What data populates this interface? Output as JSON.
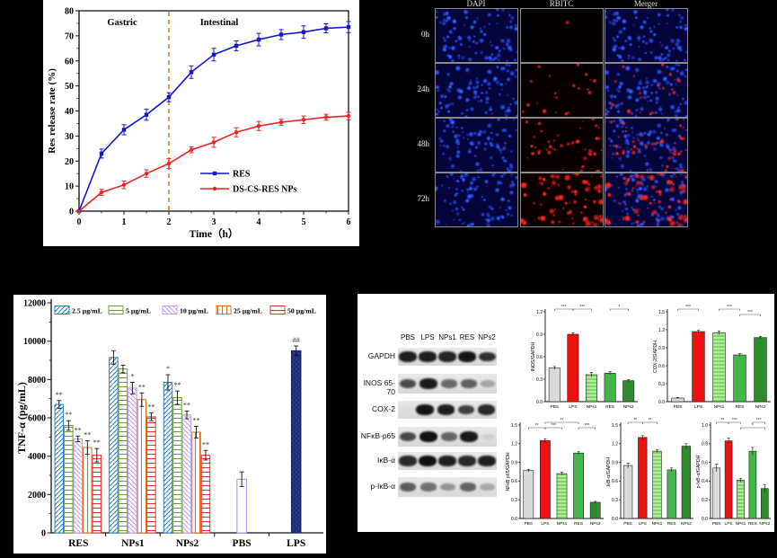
{
  "chart_data": [
    {
      "type": "line",
      "title": "",
      "xlabel": "Time（h）",
      "ylabel": "Res release rate (%)",
      "xlim": [
        0,
        6
      ],
      "ylim": [
        0,
        80
      ],
      "xticks": [
        0,
        1,
        2,
        3,
        4,
        5,
        6
      ],
      "yticks": [
        0,
        10,
        20,
        30,
        40,
        50,
        60,
        70,
        80
      ],
      "grid": false,
      "region_labels": {
        "left": "Gastric",
        "right": "Intestinal"
      },
      "divider_x": 2,
      "divider_color": "#e0821e",
      "legend_position": "lower right",
      "x": [
        0,
        0.5,
        1,
        1.5,
        2,
        2.5,
        3,
        3.5,
        4,
        4.5,
        5,
        5.5,
        6
      ],
      "series": [
        {
          "name": "RES",
          "color": "#1414cc",
          "marker": "square",
          "values": [
            0,
            23,
            32.5,
            38.5,
            45.5,
            55.5,
            62.5,
            66,
            68.5,
            70.5,
            71.5,
            73,
            73.5
          ],
          "errors": [
            0,
            1.8,
            2,
            2.2,
            1.8,
            2.5,
            2.5,
            2,
            2.5,
            2,
            2.5,
            1.8,
            2.2
          ]
        },
        {
          "name": "DS-CS-RES NPs",
          "color": "#ee2222",
          "marker": "circle",
          "values": [
            0,
            7.5,
            10.5,
            15,
            19,
            24.5,
            27.5,
            31.5,
            34,
            35.5,
            36.5,
            37.5,
            38
          ],
          "errors": [
            0,
            1.2,
            1.5,
            1.5,
            2,
            1.2,
            2,
            1.8,
            1.8,
            1.2,
            1.5,
            1.2,
            1.5
          ]
        }
      ]
    },
    {
      "type": "bar",
      "title": "",
      "xlabel": "",
      "ylabel": "TNF-α (pg/mL)",
      "ylim": [
        0,
        12000
      ],
      "yticks": [
        0,
        2000,
        4000,
        6000,
        8000,
        10000,
        12000
      ],
      "legend_position": "top inside",
      "legend": [
        {
          "label": "2.5 µg/mL",
          "color": "#2a7fc1",
          "hatch": "diag-up"
        },
        {
          "label": "5 µg/mL",
          "color": "#6f9c3a",
          "hatch": "horiz"
        },
        {
          "label": "10 µg/mL",
          "color": "#c09af0",
          "hatch": "diag-down"
        },
        {
          "label": "25 µg/mL",
          "color": "#d2701e",
          "hatch": "vert"
        },
        {
          "label": "50 µg/mL",
          "color": "#e03030",
          "hatch": "horiz"
        }
      ],
      "groups": [
        {
          "label": "RES",
          "values": [
            6700,
            5600,
            4900,
            4450,
            4050
          ],
          "errors": [
            200,
            250,
            150,
            350,
            350
          ],
          "sig": [
            "**",
            "**",
            "**",
            "**",
            "**"
          ]
        },
        {
          "label": "NPs1",
          "values": [
            9150,
            8550,
            7550,
            6950,
            6050
          ],
          "errors": [
            350,
            200,
            300,
            350,
            200
          ],
          "sig": [
            "",
            "",
            "*",
            "**",
            "**"
          ]
        },
        {
          "label": "NPs2",
          "values": [
            7850,
            7050,
            6150,
            5250,
            4050
          ],
          "errors": [
            400,
            350,
            200,
            300,
            250
          ],
          "sig": [
            "*",
            "**",
            "**",
            "**",
            "**"
          ]
        },
        {
          "label": "PBS",
          "values": [
            2800
          ],
          "errors": [
            380
          ],
          "sig": [
            ""
          ],
          "style": "pbs",
          "bar_color": "#b488ea"
        },
        {
          "label": "LPS",
          "values": [
            9500
          ],
          "errors": [
            250
          ],
          "sig": [
            "##"
          ],
          "style": "lps",
          "bar_color": "#2b3a8f"
        }
      ]
    },
    {
      "type": "bar",
      "ylabel": "INOS/GAPDH",
      "ylim": [
        0,
        1.2
      ],
      "ytick_step": 0.3,
      "categories": [
        "PBS",
        "LPS",
        "NPs1",
        "RES",
        "NPs2"
      ],
      "values": [
        0.45,
        0.9,
        0.36,
        0.38,
        0.28
      ],
      "errors": [
        0.02,
        0.02,
        0.03,
        0.02,
        0.015
      ],
      "brackets": [
        {
          "from": 0,
          "to": 1,
          "label": "***",
          "row": 0
        },
        {
          "from": 1,
          "to": 2,
          "label": "***",
          "row": 0
        },
        {
          "from": 3,
          "to": 4,
          "label": "*",
          "row": 0
        }
      ]
    },
    {
      "type": "bar",
      "ylabel": "COX-2/GAPDH",
      "ylim": [
        0,
        1.5
      ],
      "ytick_step": 0.3,
      "categories": [
        "PBS",
        "LPS",
        "NPs1",
        "RES",
        "NPs2"
      ],
      "values": [
        0.06,
        1.17,
        1.15,
        0.78,
        1.07
      ],
      "errors": [
        0.01,
        0.02,
        0.03,
        0.02,
        0.02
      ],
      "brackets": [
        {
          "from": 0,
          "to": 1,
          "label": "***",
          "row": 0
        },
        {
          "from": 2,
          "to": 3,
          "label": "***",
          "row": 0
        },
        {
          "from": 3,
          "to": 4,
          "label": "***",
          "row": 1
        }
      ]
    },
    {
      "type": "bar",
      "ylabel": "NFκB p65/GAPDH",
      "ylim": [
        0,
        1.5
      ],
      "ytick_step": 0.3,
      "categories": [
        "PBS",
        "LPS",
        "NPs1",
        "RES",
        "NPs2"
      ],
      "values": [
        0.77,
        1.25,
        0.72,
        1.05,
        0.26
      ],
      "errors": [
        0.02,
        0.03,
        0.02,
        0.02,
        0.015
      ],
      "brackets": [
        {
          "from": 1,
          "to": 3,
          "label": "**",
          "row": 0
        },
        {
          "from": 0,
          "to": 1,
          "label": "**",
          "row": 1
        },
        {
          "from": 1,
          "to": 2,
          "label": "***",
          "row": 1
        },
        {
          "from": 3,
          "to": 4,
          "label": "***",
          "row": 1
        }
      ]
    },
    {
      "type": "bar",
      "ylabel": "IκB-α/GAPDH",
      "ylim": [
        0,
        1.5
      ],
      "ytick_step": 0.3,
      "categories": [
        "PBS",
        "LPS",
        "NPs1",
        "RES",
        "NPs2"
      ],
      "values": [
        0.85,
        1.3,
        1.08,
        0.78,
        1.16
      ],
      "errors": [
        0.04,
        0.03,
        0.02,
        0.03,
        0.04
      ],
      "brackets": [
        {
          "from": 0,
          "to": 1,
          "label": "**",
          "row": 0
        },
        {
          "from": 1,
          "to": 2,
          "label": "**",
          "row": 0
        }
      ]
    },
    {
      "type": "bar",
      "ylabel": "p-IκB-α/GAPDH",
      "ylim": [
        0,
        1.0
      ],
      "ytick_step": 0.2,
      "categories": [
        "PBS",
        "LPS",
        "NPs1",
        "RES",
        "NPs2"
      ],
      "values": [
        0.54,
        0.83,
        0.41,
        0.72,
        0.32
      ],
      "errors": [
        0.04,
        0.03,
        0.02,
        0.04,
        0.04
      ],
      "brackets": [
        {
          "from": 0,
          "to": 1,
          "label": "**",
          "row": 0
        },
        {
          "from": 1,
          "to": 2,
          "label": "***",
          "row": 0
        },
        {
          "from": 2,
          "to": 4,
          "label": "*",
          "row": 1
        },
        {
          "from": 3,
          "to": 4,
          "label": "***",
          "row": 0
        }
      ]
    }
  ],
  "mini_style": {
    "bar_colors": [
      "#d9d9d9",
      "#ee1111",
      "#7bd65f",
      "#43b649",
      "#2e8b2e"
    ],
    "hatched_index": 2
  },
  "fluorescence": {
    "columns": [
      "DAPI",
      "RBITC",
      "Merger"
    ],
    "rows": [
      "0h",
      "24h",
      "48h",
      "72h"
    ],
    "cells": [
      {
        "row": "0h",
        "col": "DAPI",
        "bg": "#05053c",
        "blue_dots": 90,
        "red_dots": 0
      },
      {
        "row": "0h",
        "col": "RBITC",
        "bg": "#020000",
        "blue_dots": 0,
        "red_dots": 1
      },
      {
        "row": "0h",
        "col": "Merger",
        "bg": "#05053c",
        "blue_dots": 90,
        "red_dots": 0
      },
      {
        "row": "24h",
        "col": "DAPI",
        "bg": "#05053c",
        "blue_dots": 90,
        "red_dots": 0
      },
      {
        "row": "24h",
        "col": "RBITC",
        "bg": "#070000",
        "blue_dots": 0,
        "red_dots": 22
      },
      {
        "row": "24h",
        "col": "Merger",
        "bg": "#05053c",
        "blue_dots": 90,
        "red_dots": 22
      },
      {
        "row": "48h",
        "col": "DAPI",
        "bg": "#05053c",
        "blue_dots": 85,
        "red_dots": 0
      },
      {
        "row": "48h",
        "col": "RBITC",
        "bg": "#080000",
        "blue_dots": 0,
        "red_dots": 45
      },
      {
        "row": "48h",
        "col": "Merger",
        "bg": "#05053c",
        "blue_dots": 85,
        "red_dots": 45
      },
      {
        "row": "72h",
        "col": "DAPI",
        "bg": "#05053c",
        "blue_dots": 80,
        "red_dots": 0
      },
      {
        "row": "72h",
        "col": "RBITC",
        "bg": "#0b0000",
        "blue_dots": 0,
        "red_dots": 68
      },
      {
        "row": "72h",
        "col": "Merger",
        "bg": "#05053c",
        "blue_dots": 80,
        "red_dots": 68
      }
    ]
  },
  "western_blot": {
    "lanes": [
      "PBS",
      "LPS",
      "NPs1",
      "RES",
      "NPs2"
    ],
    "rows": [
      {
        "label": "GAPDH",
        "intensities": [
          0.9,
          0.9,
          0.88,
          0.95,
          0.82
        ]
      },
      {
        "label": "INOS 65-70",
        "intensities": [
          0.7,
          0.92,
          0.55,
          0.6,
          0.28
        ]
      },
      {
        "label": "COX-2",
        "intensities": [
          0.02,
          0.95,
          0.9,
          0.75,
          0.85
        ]
      },
      {
        "label": "NFκB-p65",
        "intensities": [
          0.7,
          0.97,
          0.58,
          0.93,
          0.08
        ]
      },
      {
        "label": "IκB-α",
        "intensities": [
          0.85,
          0.97,
          0.9,
          0.85,
          0.9
        ]
      },
      {
        "label": "p-IκB-α",
        "intensities": [
          0.62,
          0.52,
          0.35,
          0.58,
          0.26
        ]
      }
    ]
  }
}
